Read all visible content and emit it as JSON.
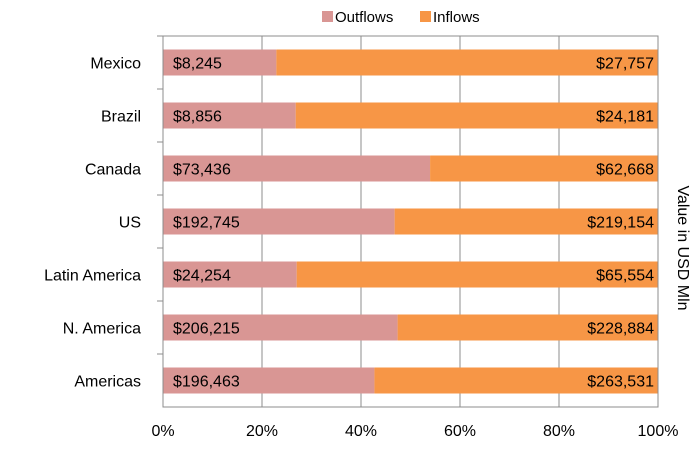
{
  "chart_data": {
    "type": "bar",
    "orientation": "horizontal",
    "stacked": "100%",
    "categories": [
      "Mexico",
      "Brazil",
      "Canada",
      "US",
      "Latin America",
      "N. America",
      "Americas"
    ],
    "series": [
      {
        "name": "Outflows",
        "color": "#d99694",
        "values": [
          8245,
          8856,
          73436,
          192745,
          24254,
          206215,
          196463
        ],
        "labels": [
          "$8,245",
          "$8,856",
          "$73,436",
          "$192,745",
          "$24,254",
          "$206,215",
          "$196,463"
        ]
      },
      {
        "name": "Inflows",
        "color": "#f79646",
        "values": [
          27757,
          24181,
          62668,
          219154,
          65554,
          228884,
          263531
        ],
        "labels": [
          "$27,757",
          "$24,181",
          "$62,668",
          "$219,154",
          "$65,554",
          "$228,884",
          "$263,531"
        ]
      }
    ],
    "x_ticks": [
      "0%",
      "20%",
      "40%",
      "60%",
      "80%",
      "100%"
    ],
    "xlim": [
      0,
      100
    ],
    "secondary_ylabel": "Value in USD Mln",
    "grid": true,
    "legend_position": "top"
  }
}
